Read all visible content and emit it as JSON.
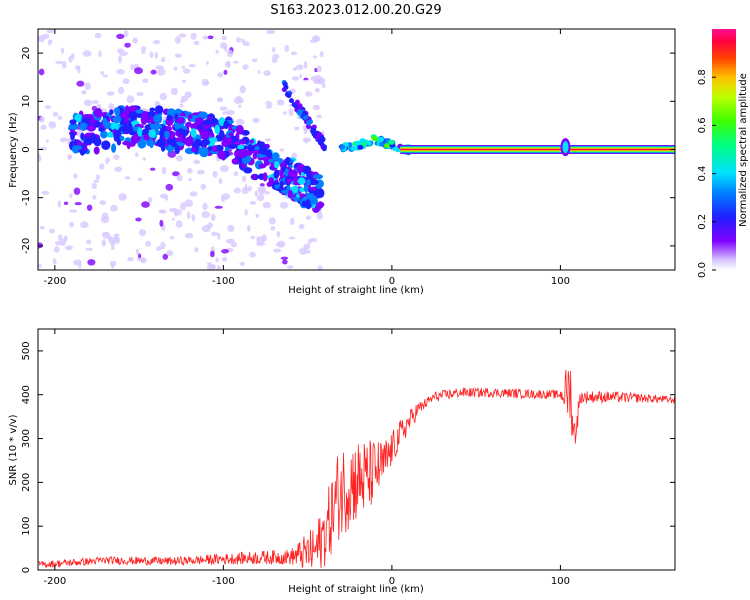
{
  "title": "S163.2023.012.00.20.G29",
  "colors": {
    "snr_line": "#ff2222",
    "background": "#ffffff"
  },
  "chart_data": [
    {
      "type": "heatmap",
      "xlabel": "Height of straight line (km)",
      "ylabel": "Frequency (Hz)",
      "xlim": [
        -210,
        168
      ],
      "ylim": [
        -25,
        25
      ],
      "xticks": [
        -200,
        -100,
        0,
        100
      ],
      "yticks": [
        -20,
        -10,
        0,
        10,
        20
      ],
      "tick_labels_x": [
        "-200",
        "-100",
        "0",
        "100"
      ],
      "tick_labels_y": [
        "-20",
        "-10",
        "0",
        "10",
        "20"
      ],
      "colorbar": {
        "label": "Normalized spectral amplitude",
        "range": [
          0,
          1
        ],
        "ticks": [
          "0.0",
          "0.2",
          "0.4",
          "0.6",
          "0.8"
        ]
      },
      "features": [
        {
          "kind": "scatter-cloud",
          "x_range": [
            -210,
            -40
          ],
          "freq_range": [
            -25,
            25
          ]
        },
        {
          "kind": "main-trend",
          "points": [
            [
              -190,
              3
            ],
            [
              -170,
              4
            ],
            [
              -150,
              5
            ],
            [
              -130,
              4
            ],
            [
              -110,
              3
            ],
            [
              -95,
              2
            ],
            [
              -85,
              -1
            ],
            [
              -75,
              -3
            ],
            [
              -65,
              -5
            ],
            [
              -55,
              -7
            ],
            [
              -45,
              -9
            ]
          ]
        },
        {
          "kind": "streak",
          "points": [
            [
              -64,
              13
            ],
            [
              -58,
              10
            ],
            [
              -52,
              7
            ],
            [
              -46,
              4
            ],
            [
              -40,
              1
            ]
          ]
        },
        {
          "kind": "ridge",
          "points": [
            [
              -30,
              0
            ],
            [
              -20,
              1
            ],
            [
              -10,
              2
            ],
            [
              0,
              1
            ],
            [
              10,
              0
            ],
            [
              168,
              0
            ]
          ]
        },
        {
          "kind": "spike",
          "x": 103,
          "freq_range": [
            -2,
            3
          ]
        }
      ]
    },
    {
      "type": "line",
      "xlabel": "Height of straight line (km)",
      "ylabel": "SNR (10 * v/v)",
      "xlim": [
        -210,
        168
      ],
      "ylim": [
        0,
        550
      ],
      "xticks": [
        -200,
        -100,
        0,
        100
      ],
      "yticks": [
        0,
        100,
        200,
        300,
        400,
        500
      ],
      "tick_labels_x": [
        "-200",
        "-100",
        "0",
        "100"
      ],
      "tick_labels_y": [
        "0",
        "100",
        "200",
        "300",
        "400",
        "500"
      ],
      "trend": [
        [
          -210,
          12
        ],
        [
          -170,
          22
        ],
        [
          -130,
          20
        ],
        [
          -100,
          25
        ],
        [
          -80,
          28
        ],
        [
          -60,
          30
        ],
        [
          -45,
          45
        ],
        [
          -38,
          100
        ],
        [
          -32,
          170
        ],
        [
          -25,
          200
        ],
        [
          -15,
          210
        ],
        [
          -5,
          240
        ],
        [
          5,
          310
        ],
        [
          15,
          365
        ],
        [
          25,
          395
        ],
        [
          40,
          405
        ],
        [
          60,
          405
        ],
        [
          80,
          402
        ],
        [
          100,
          400
        ],
        [
          106,
          410
        ],
        [
          108,
          300
        ],
        [
          112,
          395
        ],
        [
          130,
          395
        ],
        [
          150,
          392
        ],
        [
          168,
          388
        ]
      ],
      "noise_amplitude": [
        [
          -210,
          8
        ],
        [
          -120,
          10
        ],
        [
          -60,
          18
        ],
        [
          -45,
          60
        ],
        [
          -30,
          110
        ],
        [
          -15,
          90
        ],
        [
          0,
          40
        ],
        [
          20,
          12
        ],
        [
          100,
          10
        ],
        [
          105,
          80
        ],
        [
          112,
          15
        ],
        [
          168,
          8
        ]
      ]
    }
  ]
}
